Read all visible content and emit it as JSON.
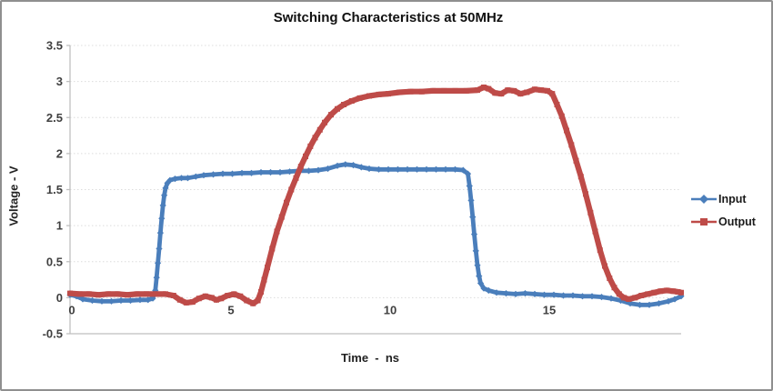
{
  "chart_data": {
    "type": "line",
    "title": "Switching Characteristics at 50MHz",
    "xlabel": "Time  -  ns",
    "ylabel": "Voltage - V",
    "xlim": [
      0,
      19.2
    ],
    "ylim": [
      -0.5,
      3.5
    ],
    "x_ticks": [
      0,
      5,
      10,
      15
    ],
    "x_tick_labels": [
      "0",
      "5",
      "10",
      "15"
    ],
    "y_ticks": [
      -0.5,
      0,
      0.5,
      1,
      1.5,
      2,
      2.5,
      3,
      3.5
    ],
    "y_tick_labels": [
      "-0.5",
      "0",
      "0.5",
      "1",
      "1.5",
      "2",
      "2.5",
      "3",
      "3.5"
    ],
    "grid": "horizontal dotted gridlines every 0.5 V, no vertical gridlines",
    "legend_position": "right",
    "series": [
      {
        "name": "Input",
        "color": "#4a7ebb",
        "marker": "diamond",
        "points": [
          [
            0,
            0.04
          ],
          [
            0.2,
            0.02
          ],
          [
            0.4,
            -0.02
          ],
          [
            0.7,
            -0.04
          ],
          [
            1,
            -0.05
          ],
          [
            1.3,
            -0.05
          ],
          [
            1.6,
            -0.04
          ],
          [
            1.9,
            -0.04
          ],
          [
            2.2,
            -0.03
          ],
          [
            2.45,
            -0.03
          ],
          [
            2.6,
            -0.01
          ],
          [
            2.68,
            0.1
          ],
          [
            2.72,
            0.28
          ],
          [
            2.76,
            0.48
          ],
          [
            2.8,
            0.68
          ],
          [
            2.84,
            0.9
          ],
          [
            2.88,
            1.1
          ],
          [
            2.92,
            1.28
          ],
          [
            2.96,
            1.42
          ],
          [
            3,
            1.52
          ],
          [
            3.06,
            1.59
          ],
          [
            3.14,
            1.63
          ],
          [
            3.3,
            1.65
          ],
          [
            3.5,
            1.66
          ],
          [
            3.7,
            1.66
          ],
          [
            3.95,
            1.68
          ],
          [
            4.2,
            1.7
          ],
          [
            4.5,
            1.71
          ],
          [
            4.8,
            1.72
          ],
          [
            5.1,
            1.72
          ],
          [
            5.4,
            1.73
          ],
          [
            5.7,
            1.73
          ],
          [
            6,
            1.74
          ],
          [
            6.3,
            1.74
          ],
          [
            6.6,
            1.74
          ],
          [
            6.9,
            1.75
          ],
          [
            7.2,
            1.76
          ],
          [
            7.5,
            1.76
          ],
          [
            7.8,
            1.77
          ],
          [
            8.1,
            1.79
          ],
          [
            8.4,
            1.83
          ],
          [
            8.65,
            1.85
          ],
          [
            8.9,
            1.84
          ],
          [
            9.15,
            1.81
          ],
          [
            9.4,
            1.79
          ],
          [
            9.7,
            1.78
          ],
          [
            10,
            1.78
          ],
          [
            10.3,
            1.78
          ],
          [
            10.6,
            1.78
          ],
          [
            10.9,
            1.78
          ],
          [
            11.2,
            1.78
          ],
          [
            11.5,
            1.78
          ],
          [
            11.8,
            1.78
          ],
          [
            12.1,
            1.78
          ],
          [
            12.35,
            1.77
          ],
          [
            12.5,
            1.72
          ],
          [
            12.55,
            1.55
          ],
          [
            12.6,
            1.35
          ],
          [
            12.65,
            1.12
          ],
          [
            12.7,
            0.88
          ],
          [
            12.75,
            0.65
          ],
          [
            12.8,
            0.45
          ],
          [
            12.85,
            0.3
          ],
          [
            12.9,
            0.2
          ],
          [
            13,
            0.13
          ],
          [
            13.15,
            0.1
          ],
          [
            13.4,
            0.07
          ],
          [
            13.7,
            0.06
          ],
          [
            14,
            0.05
          ],
          [
            14.3,
            0.06
          ],
          [
            14.6,
            0.05
          ],
          [
            14.9,
            0.04
          ],
          [
            15.2,
            0.04
          ],
          [
            15.5,
            0.03
          ],
          [
            15.8,
            0.03
          ],
          [
            16.1,
            0.02
          ],
          [
            16.4,
            0.02
          ],
          [
            16.7,
            0.01
          ],
          [
            17,
            -0.01
          ],
          [
            17.3,
            -0.04
          ],
          [
            17.6,
            -0.08
          ],
          [
            17.9,
            -0.1
          ],
          [
            18.2,
            -0.1
          ],
          [
            18.5,
            -0.08
          ],
          [
            18.8,
            -0.05
          ],
          [
            19,
            -0.02
          ],
          [
            19.2,
            0.02
          ]
        ]
      },
      {
        "name": "Output",
        "color": "#be4b48",
        "marker": "square",
        "points": [
          [
            0,
            0.06
          ],
          [
            0.3,
            0.05
          ],
          [
            0.6,
            0.05
          ],
          [
            0.9,
            0.04
          ],
          [
            1.2,
            0.05
          ],
          [
            1.5,
            0.05
          ],
          [
            1.8,
            0.04
          ],
          [
            2.1,
            0.05
          ],
          [
            2.4,
            0.05
          ],
          [
            2.7,
            0.05
          ],
          [
            3,
            0.05
          ],
          [
            3.25,
            0.03
          ],
          [
            3.45,
            -0.03
          ],
          [
            3.65,
            -0.07
          ],
          [
            3.85,
            -0.06
          ],
          [
            4.05,
            -0.01
          ],
          [
            4.25,
            0.02
          ],
          [
            4.45,
            0
          ],
          [
            4.6,
            -0.03
          ],
          [
            4.75,
            -0.01
          ],
          [
            4.95,
            0.03
          ],
          [
            5.15,
            0.05
          ],
          [
            5.35,
            0.02
          ],
          [
            5.55,
            -0.04
          ],
          [
            5.75,
            -0.08
          ],
          [
            5.9,
            -0.04
          ],
          [
            6,
            0.08
          ],
          [
            6.1,
            0.25
          ],
          [
            6.2,
            0.42
          ],
          [
            6.35,
            0.68
          ],
          [
            6.5,
            0.92
          ],
          [
            6.65,
            1.12
          ],
          [
            6.8,
            1.32
          ],
          [
            6.95,
            1.5
          ],
          [
            7.1,
            1.66
          ],
          [
            7.25,
            1.82
          ],
          [
            7.4,
            1.96
          ],
          [
            7.55,
            2.1
          ],
          [
            7.7,
            2.22
          ],
          [
            7.85,
            2.33
          ],
          [
            8,
            2.43
          ],
          [
            8.2,
            2.54
          ],
          [
            8.4,
            2.62
          ],
          [
            8.6,
            2.68
          ],
          [
            8.85,
            2.73
          ],
          [
            9.1,
            2.77
          ],
          [
            9.4,
            2.8
          ],
          [
            9.7,
            2.82
          ],
          [
            10,
            2.83
          ],
          [
            10.35,
            2.85
          ],
          [
            10.7,
            2.86
          ],
          [
            11.05,
            2.86
          ],
          [
            11.4,
            2.87
          ],
          [
            11.75,
            2.87
          ],
          [
            12.1,
            2.87
          ],
          [
            12.45,
            2.87
          ],
          [
            12.8,
            2.88
          ],
          [
            13,
            2.92
          ],
          [
            13.15,
            2.9
          ],
          [
            13.35,
            2.84
          ],
          [
            13.55,
            2.83
          ],
          [
            13.75,
            2.88
          ],
          [
            13.95,
            2.87
          ],
          [
            14.15,
            2.83
          ],
          [
            14.35,
            2.85
          ],
          [
            14.6,
            2.89
          ],
          [
            14.8,
            2.88
          ],
          [
            15,
            2.87
          ],
          [
            15.15,
            2.83
          ],
          [
            15.3,
            2.68
          ],
          [
            15.45,
            2.52
          ],
          [
            15.6,
            2.32
          ],
          [
            15.75,
            2.12
          ],
          [
            15.9,
            1.9
          ],
          [
            16.05,
            1.68
          ],
          [
            16.2,
            1.44
          ],
          [
            16.35,
            1.18
          ],
          [
            16.5,
            0.92
          ],
          [
            16.65,
            0.66
          ],
          [
            16.8,
            0.44
          ],
          [
            16.95,
            0.27
          ],
          [
            17.1,
            0.14
          ],
          [
            17.25,
            0.05
          ],
          [
            17.4,
            0
          ],
          [
            17.55,
            -0.02
          ],
          [
            17.75,
            0
          ],
          [
            17.95,
            0.03
          ],
          [
            18.15,
            0.05
          ],
          [
            18.35,
            0.07
          ],
          [
            18.55,
            0.09
          ],
          [
            18.75,
            0.1
          ],
          [
            18.95,
            0.09
          ],
          [
            19.1,
            0.08
          ],
          [
            19.2,
            0.07
          ]
        ]
      }
    ]
  },
  "colors": {
    "input_line": "#4a7ebb",
    "output_line": "#be4b48",
    "gridline": "#dcdcdc",
    "axis_line": "#bfbfbf",
    "tick_text": "#3f3f3f",
    "frame_border": "#8f8f8f",
    "background": "#ffffff"
  }
}
